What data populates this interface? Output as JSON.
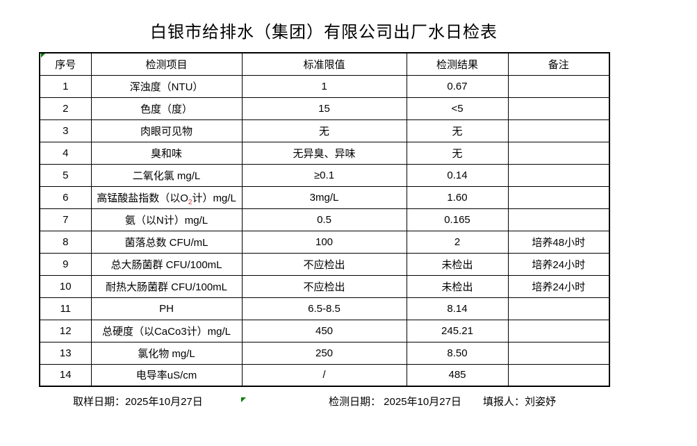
{
  "title": "白银市给排水（集团）有限公司出厂水日检表",
  "colors": {
    "text": "#000000",
    "border": "#000000",
    "excel_marker_green": "#008000",
    "subscript_red": "#cc3333"
  },
  "table": {
    "headers": [
      "序号",
      "检测项目",
      "标准限值",
      "检测结果",
      "备注"
    ],
    "rows": [
      {
        "no": "1",
        "item": "浑浊度（NTU）",
        "limit": "1",
        "result": "0.67",
        "remark": ""
      },
      {
        "no": "2",
        "item": "色度（度）",
        "limit": "15",
        "result": "<5",
        "remark": ""
      },
      {
        "no": "3",
        "item": "肉眼可见物",
        "limit": "无",
        "result": "无",
        "remark": ""
      },
      {
        "no": "4",
        "item": "臭和味",
        "limit": "无异臭、异味",
        "result": "无",
        "remark": ""
      },
      {
        "no": "5",
        "item": "二氧化氯 mg/L",
        "limit": "≥0.1",
        "result": "0.14",
        "remark": ""
      },
      {
        "no": "6",
        "item": "高锰酸盐指数（以O₂计）mg/L",
        "limit": "3mg/L",
        "result": "1.60",
        "remark": ""
      },
      {
        "no": "7",
        "item": "氨（以N计）mg/L",
        "limit": "0.5",
        "result": "0.165",
        "remark": ""
      },
      {
        "no": "8",
        "item": "菌落总数 CFU/mL",
        "limit": "100",
        "result": "2",
        "remark": "培养48小时"
      },
      {
        "no": "9",
        "item": "总大肠菌群 CFU/100mL",
        "limit": "不应检出",
        "result": "未检出",
        "remark": "培养24小时"
      },
      {
        "no": "10",
        "item": "耐热大肠菌群 CFU/100mL",
        "limit": "不应检出",
        "result": "未检出",
        "remark": "培养24小时"
      },
      {
        "no": "11",
        "item": "PH",
        "limit": "6.5-8.5",
        "result": "8.14",
        "remark": ""
      },
      {
        "no": "12",
        "item": "总硬度（以CaCo3计）mg/L",
        "limit": "450",
        "result": "245.21",
        "remark": ""
      },
      {
        "no": "13",
        "item": "氯化物 mg/L",
        "limit": "250",
        "result": "8.50",
        "remark": ""
      },
      {
        "no": "14",
        "item": "电导率uS/cm",
        "limit": "/",
        "result": "485",
        "remark": ""
      }
    ]
  },
  "footer": {
    "sample_label": "取样日期：",
    "sample_date": "2025年10月27日",
    "test_label": "检测日期： ",
    "test_date": "2025年10月27日",
    "reporter_label": "填报人：",
    "reporter_name": "刘姿妤"
  }
}
